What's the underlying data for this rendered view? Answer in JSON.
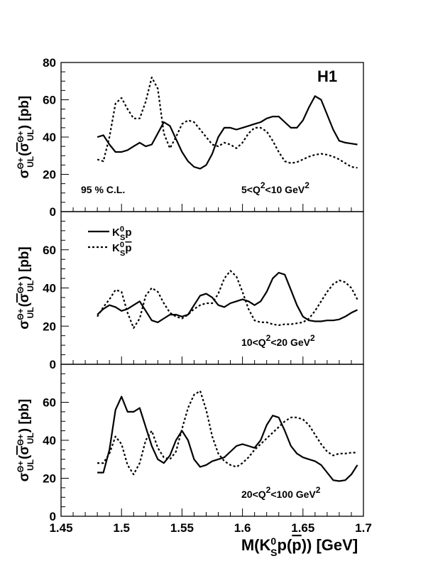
{
  "chart_data": {
    "type": "line",
    "xlabel": "M(K⁰Sp(p̄)) [GeV]",
    "ylabel": "σUL(σUL) [pb]",
    "xlim": [
      1.45,
      1.7
    ],
    "xticks": [
      "1.45",
      "1.5",
      "1.55",
      "1.6",
      "1.65",
      "1.7"
    ],
    "brand": "H1",
    "legend": {
      "placement": "top-left",
      "entries": [
        {
          "name": "K⁰Sp",
          "style": "solid"
        },
        {
          "name": "K⁰Sp̄",
          "style": "dashed"
        }
      ]
    },
    "panels": [
      {
        "ylim": [
          0,
          80
        ],
        "yticks": [
          "0",
          "20",
          "40",
          "60",
          "80"
        ],
        "annotations": [
          "95 % C.L.",
          "5<Q²<10 GeV²"
        ],
        "series": [
          {
            "name": "K⁰Sp",
            "style": "solid",
            "x": [
              1.48,
              1.485,
              1.49,
              1.495,
              1.5,
              1.505,
              1.51,
              1.515,
              1.52,
              1.525,
              1.53,
              1.535,
              1.54,
              1.545,
              1.55,
              1.555,
              1.56,
              1.565,
              1.57,
              1.575,
              1.58,
              1.585,
              1.59,
              1.595,
              1.6,
              1.605,
              1.61,
              1.615,
              1.62,
              1.625,
              1.63,
              1.635,
              1.64,
              1.645,
              1.65,
              1.655,
              1.66,
              1.665,
              1.67,
              1.675,
              1.68,
              1.685,
              1.69,
              1.695
            ],
            "y": [
              40,
              41,
              36,
              32,
              32,
              33,
              35,
              37,
              35,
              36,
              42,
              48,
              46,
              39,
              32,
              27,
              24,
              23,
              25,
              31,
              40,
              45,
              45,
              44,
              45,
              46,
              47,
              48,
              50,
              51,
              51,
              48,
              45,
              45,
              49,
              56,
              62,
              60,
              52,
              44,
              38,
              37,
              36.5,
              36
            ]
          },
          {
            "name": "K⁰Sp̄",
            "style": "dashed",
            "x": [
              1.48,
              1.485,
              1.49,
              1.495,
              1.5,
              1.505,
              1.51,
              1.515,
              1.52,
              1.525,
              1.53,
              1.535,
              1.54,
              1.545,
              1.55,
              1.555,
              1.56,
              1.565,
              1.57,
              1.575,
              1.58,
              1.585,
              1.59,
              1.595,
              1.6,
              1.605,
              1.61,
              1.615,
              1.62,
              1.625,
              1.63,
              1.635,
              1.64,
              1.645,
              1.65,
              1.655,
              1.66,
              1.665,
              1.67,
              1.675,
              1.68,
              1.685,
              1.69,
              1.695
            ],
            "y": [
              28,
              27,
              40,
              58,
              61,
              55,
              50,
              50,
              59,
              72,
              66,
              42,
              34,
              40,
              47,
              49,
              48,
              44,
              40,
              36,
              35,
              37,
              36,
              34,
              37,
              42,
              45,
              45,
              43,
              38,
              32,
              27,
              26,
              26.5,
              28,
              29.5,
              30.5,
              31,
              30.5,
              29.5,
              28,
              26,
              24,
              23.5
            ]
          }
        ]
      },
      {
        "ylim": [
          0,
          80
        ],
        "yticks": [
          "0",
          "20",
          "40",
          "60"
        ],
        "annotations": [
          "10<Q²<20 GeV²"
        ],
        "series": [
          {
            "name": "K⁰Sp",
            "style": "solid",
            "x": [
              1.48,
              1.485,
              1.49,
              1.495,
              1.5,
              1.505,
              1.51,
              1.515,
              1.52,
              1.525,
              1.53,
              1.535,
              1.54,
              1.545,
              1.55,
              1.555,
              1.56,
              1.565,
              1.57,
              1.575,
              1.58,
              1.585,
              1.59,
              1.595,
              1.6,
              1.605,
              1.61,
              1.615,
              1.62,
              1.625,
              1.63,
              1.635,
              1.64,
              1.645,
              1.65,
              1.655,
              1.66,
              1.665,
              1.67,
              1.675,
              1.68,
              1.685,
              1.69,
              1.695
            ],
            "y": [
              26,
              29,
              31,
              30,
              28,
              29,
              31,
              33,
              28,
              23,
              22,
              24,
              26,
              26,
              25,
              26,
              31,
              36,
              37,
              35,
              31,
              30,
              32,
              33,
              34,
              33,
              31,
              33,
              38,
              45,
              48,
              47,
              39,
              31,
              25,
              23,
              22.5,
              22.5,
              23,
              23,
              23.5,
              25,
              27,
              28.5
            ]
          },
          {
            "name": "K⁰Sp̄",
            "style": "dashed",
            "x": [
              1.48,
              1.485,
              1.49,
              1.495,
              1.5,
              1.505,
              1.51,
              1.515,
              1.52,
              1.525,
              1.53,
              1.535,
              1.54,
              1.545,
              1.55,
              1.555,
              1.56,
              1.565,
              1.57,
              1.575,
              1.58,
              1.585,
              1.59,
              1.595,
              1.6,
              1.605,
              1.61,
              1.615,
              1.62,
              1.625,
              1.63,
              1.635,
              1.64,
              1.645,
              1.65,
              1.655,
              1.66,
              1.665,
              1.67,
              1.675,
              1.68,
              1.685,
              1.69,
              1.695
            ],
            "y": [
              25,
              30,
              34,
              39,
              38,
              27,
              19,
              24,
              36,
              40,
              38,
              32,
              27,
              25,
              24,
              26,
              29,
              31,
              32,
              32,
              37,
              45,
              49,
              46,
              38,
              29,
              23,
              22,
              22,
              21,
              20.5,
              21,
              21,
              21.5,
              22,
              24,
              28,
              33,
              38,
              42,
              44,
              43,
              40,
              34
            ]
          }
        ]
      },
      {
        "ylim": [
          0,
          80
        ],
        "yticks": [
          "0",
          "20",
          "40",
          "60"
        ],
        "annotations": [
          "20<Q²<100 GeV²"
        ],
        "series": [
          {
            "name": "K⁰Sp",
            "style": "solid",
            "x": [
              1.48,
              1.485,
              1.49,
              1.495,
              1.5,
              1.505,
              1.51,
              1.515,
              1.52,
              1.525,
              1.53,
              1.535,
              1.54,
              1.545,
              1.55,
              1.555,
              1.56,
              1.565,
              1.57,
              1.575,
              1.58,
              1.585,
              1.59,
              1.595,
              1.6,
              1.605,
              1.61,
              1.615,
              1.62,
              1.625,
              1.63,
              1.635,
              1.64,
              1.645,
              1.65,
              1.655,
              1.66,
              1.665,
              1.67,
              1.675,
              1.68,
              1.685,
              1.69,
              1.695
            ],
            "y": [
              23,
              23,
              35,
              56,
              63,
              55,
              55,
              57,
              47,
              37,
              30,
              28,
              32,
              40,
              45,
              40,
              30,
              26,
              27,
              29,
              30,
              31,
              34,
              37,
              38,
              37,
              36,
              40,
              48,
              53,
              52,
              45,
              37,
              33,
              31,
              30,
              29,
              27,
              23,
              19,
              18.5,
              19,
              22,
              27
            ]
          },
          {
            "name": "K⁰Sp̄",
            "style": "dashed",
            "x": [
              1.48,
              1.485,
              1.49,
              1.495,
              1.5,
              1.505,
              1.51,
              1.515,
              1.52,
              1.525,
              1.53,
              1.535,
              1.54,
              1.545,
              1.55,
              1.555,
              1.56,
              1.565,
              1.57,
              1.575,
              1.58,
              1.585,
              1.59,
              1.595,
              1.6,
              1.605,
              1.61,
              1.615,
              1.62,
              1.625,
              1.63,
              1.635,
              1.64,
              1.645,
              1.65,
              1.655,
              1.66,
              1.665,
              1.67,
              1.675,
              1.68,
              1.685,
              1.69,
              1.695
            ],
            "y": [
              28,
              28,
              33,
              42,
              38,
              27,
              22,
              28,
              40,
              45,
              36,
              31,
              30,
              34,
              46,
              57,
              64,
              66,
              56,
              42,
              33,
              29,
              27,
              26,
              28,
              31,
              35,
              38,
              41,
              44,
              47,
              50,
              52,
              52,
              51,
              48,
              43,
              38,
              34,
              32,
              33,
              33,
              33.5,
              33.5
            ]
          }
        ]
      }
    ]
  }
}
